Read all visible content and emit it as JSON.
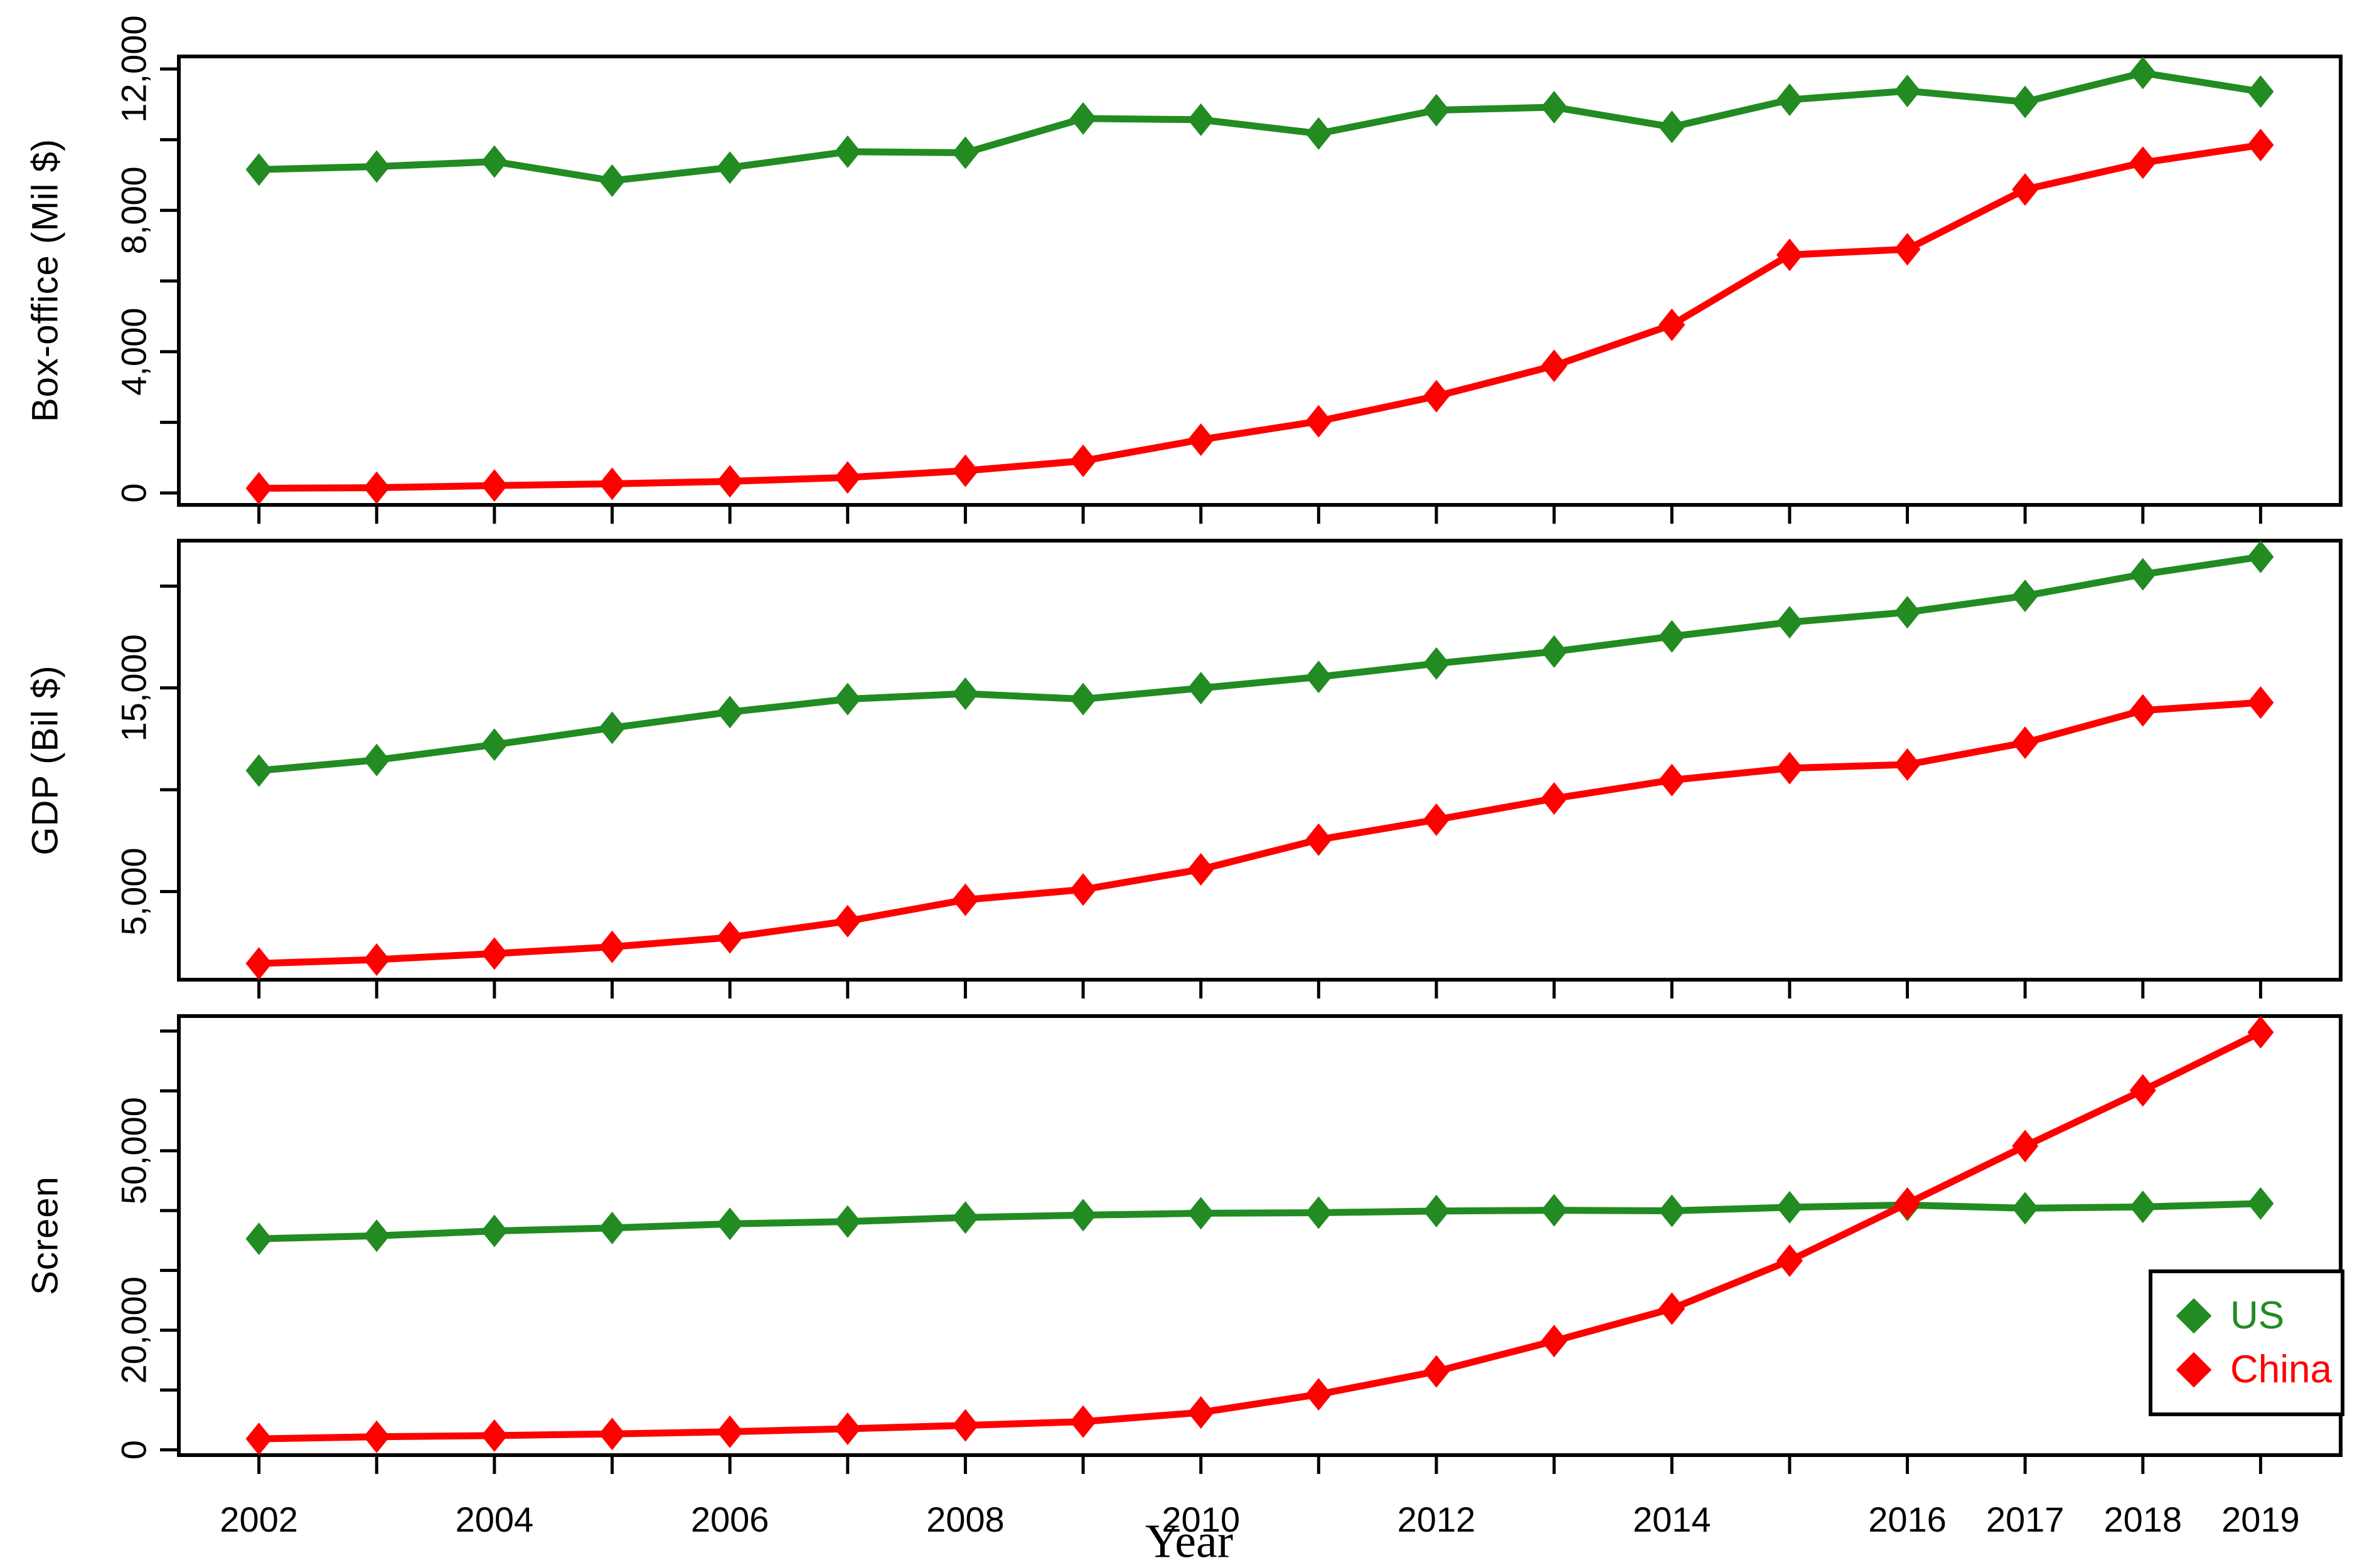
{
  "figure": {
    "background": "#ffffff",
    "x_axis_title": "Year"
  },
  "legend": {
    "position": "bottom-right-of-screen-panel",
    "items": [
      {
        "label": "US",
        "color": "#228b22",
        "marker": "diamond"
      },
      {
        "label": "China",
        "color": "#ff0000",
        "marker": "diamond"
      }
    ]
  },
  "x_axis": {
    "xlim": [
      2001.32,
      2019.68
    ],
    "tick_years": [
      2002,
      2003,
      2004,
      2005,
      2006,
      2007,
      2008,
      2009,
      2010,
      2011,
      2012,
      2013,
      2014,
      2015,
      2016,
      2017,
      2018,
      2019
    ],
    "labeled_years": [
      2002,
      2004,
      2006,
      2008,
      2010,
      2012,
      2014,
      2016,
      2017,
      2018,
      2019
    ],
    "title": "Year"
  },
  "chart_data": [
    {
      "type": "line",
      "panel": "box-office",
      "ylabel": "Box-office (Mil $)",
      "xlabel": "Year",
      "x": [
        2002,
        2003,
        2004,
        2005,
        2006,
        2007,
        2008,
        2009,
        2010,
        2011,
        2012,
        2013,
        2014,
        2015,
        2016,
        2017,
        2018,
        2019
      ],
      "series": [
        {
          "name": "US",
          "color": "#228b22",
          "values": [
            9155,
            9240,
            9380,
            8840,
            9210,
            9660,
            9630,
            10600,
            10565,
            10175,
            10835,
            10920,
            10360,
            11130,
            11380,
            11070,
            11890,
            11360
          ]
        },
        {
          "name": "China",
          "color": "#ff0000",
          "values": [
            133,
            150,
            210,
            260,
            330,
            440,
            630,
            910,
            1510,
            2030,
            2740,
            3600,
            4760,
            6740,
            6900,
            8590,
            9350,
            9850
          ]
        }
      ],
      "ylim": [
        -337,
        12356
      ],
      "yticks": [
        0,
        2000,
        4000,
        6000,
        8000,
        10000,
        12000
      ],
      "ytick_labeled": [
        0,
        4000,
        8000,
        12000
      ],
      "grid": false,
      "legend_position": null
    },
    {
      "type": "line",
      "panel": "gdp",
      "ylabel": "GDP (Bil $)",
      "xlabel": "Year",
      "x": [
        2002,
        2003,
        2004,
        2005,
        2006,
        2007,
        2008,
        2009,
        2010,
        2011,
        2012,
        2013,
        2014,
        2015,
        2016,
        2017,
        2018,
        2019
      ],
      "series": [
        {
          "name": "US",
          "color": "#228b22",
          "values": [
            10940,
            11460,
            12215,
            13040,
            13815,
            14450,
            14715,
            14450,
            14990,
            15540,
            16200,
            16785,
            17530,
            18225,
            18715,
            19520,
            20580,
            21435
          ]
        },
        {
          "name": "China",
          "color": "#ff0000",
          "values": [
            1470,
            1660,
            1955,
            2285,
            2750,
            3550,
            4595,
            5100,
            6090,
            7550,
            8530,
            9570,
            10475,
            11060,
            11235,
            12310,
            13895,
            14280
          ]
        }
      ],
      "ylim": [
        673,
        22231
      ],
      "yticks": [
        5000,
        10000,
        15000,
        20000
      ],
      "ytick_labeled": [
        5000,
        15000
      ],
      "grid": false,
      "legend_position": null
    },
    {
      "type": "line",
      "panel": "screen",
      "ylabel": "Screen",
      "xlabel": "Year",
      "x": [
        2002,
        2003,
        2004,
        2005,
        2006,
        2007,
        2008,
        2009,
        2010,
        2011,
        2012,
        2013,
        2014,
        2015,
        2016,
        2017,
        2018,
        2019
      ],
      "series": [
        {
          "name": "US",
          "color": "#228b22",
          "values": [
            35280,
            35786,
            36594,
            37092,
            37776,
            38159,
            38834,
            39233,
            39547,
            39641,
            39918,
            40045,
            39956,
            40547,
            40928,
            40393,
            40613,
            41172
          ]
        },
        {
          "name": "China",
          "color": "#ff0000",
          "values": [
            1845,
            2197,
            2396,
            2668,
            3034,
            3527,
            4097,
            4723,
            6256,
            9286,
            13118,
            18195,
            23600,
            31627,
            41179,
            50776,
            60079,
            69787
          ]
        }
      ],
      "ylim": [
        -873,
        72505
      ],
      "yticks": [
        0,
        10000,
        20000,
        30000,
        40000,
        50000,
        60000,
        70000
      ],
      "ytick_labeled": [
        0,
        20000,
        50000
      ],
      "grid": false,
      "legend_position": "bottom-right"
    }
  ]
}
